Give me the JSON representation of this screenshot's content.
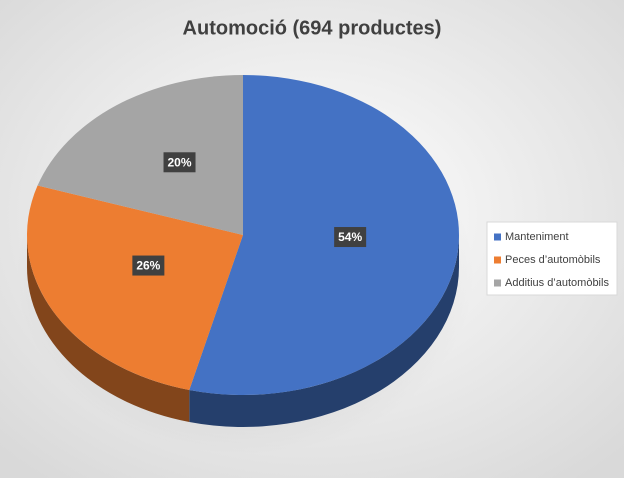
{
  "chart_data": {
    "type": "pie",
    "title": "Automoció (694 productes)",
    "categories": [
      "Manteniment",
      "Peces d’automòbils",
      "Additius d’automòbils"
    ],
    "values": [
      54,
      26,
      20
    ],
    "value_labels": [
      "54%",
      "26%",
      "20%"
    ],
    "colors": [
      "#4472c4",
      "#ed7d31",
      "#a5a5a5"
    ],
    "legend": "right"
  }
}
